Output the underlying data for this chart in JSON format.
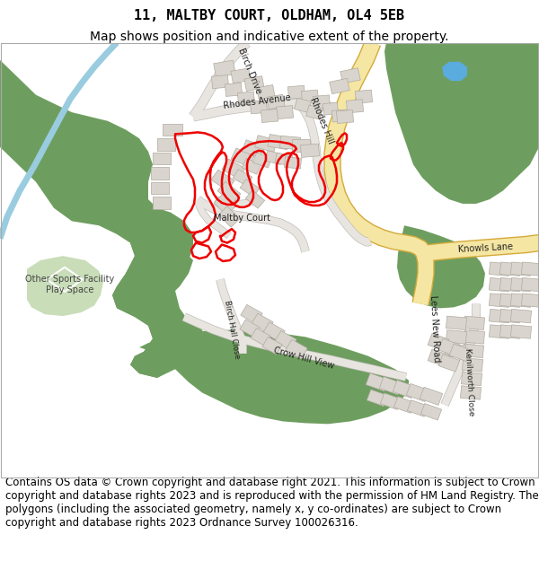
{
  "title_line1": "11, MALTBY COURT, OLDHAM, OL4 5EB",
  "title_line2": "Map shows position and indicative extent of the property.",
  "footer_text": "Contains OS data © Crown copyright and database right 2021. This information is subject to Crown copyright and database rights 2023 and is reproduced with the permission of HM Land Registry. The polygons (including the associated geometry, namely x, y co-ordinates) are subject to Crown copyright and database rights 2023 Ordnance Survey 100026316.",
  "title_fontsize": 11,
  "subtitle_fontsize": 10,
  "footer_fontsize": 8.5,
  "fig_width": 6.0,
  "fig_height": 6.25,
  "title_color": "#000000",
  "background_color": "#ffffff",
  "map_bg": "#f0ede5",
  "green_color": "#6e9e5f",
  "light_green_color": "#c8ddb8",
  "water_color": "#9acce0",
  "road_fill": "#f5e6a3",
  "road_edge": "#d4aa3a",
  "building_fill": "#d9d5ce",
  "building_edge": "#b0aaa0",
  "red_color": "#ee0000",
  "red_lw": 1.8
}
